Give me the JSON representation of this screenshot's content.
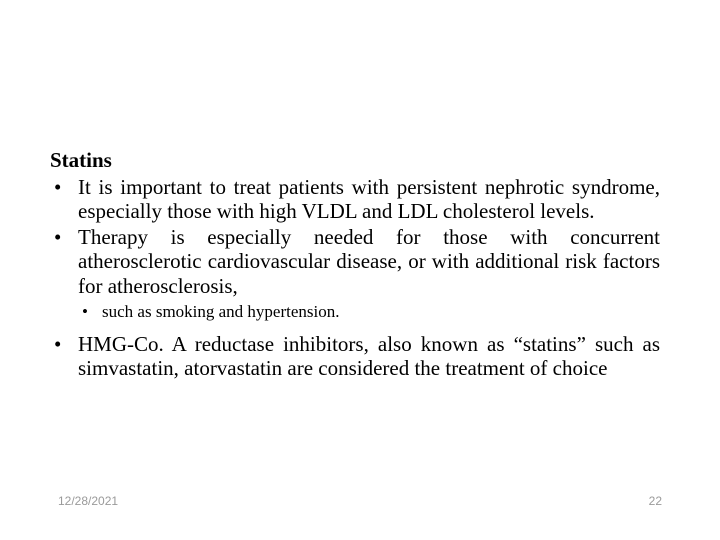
{
  "slide": {
    "heading": "Statins",
    "bullets": [
      {
        "level": 1,
        "text": "It is important to treat patients with persistent nephrotic syndrome, especially those with high VLDL and LDL cholesterol levels."
      },
      {
        "level": 1,
        "text": " Therapy is especially needed for those with concurrent atherosclerotic cardiovascular disease, or with additional risk factors for atherosclerosis,"
      },
      {
        "level": 2,
        "text": "such as smoking and hypertension."
      },
      {
        "level": 1,
        "text": "HMG-Co. A reductase inhibitors, also known as “statins” such as simvastatin, atorvastatin are considered the treatment of choice"
      }
    ]
  },
  "footer": {
    "date": "12/28/2021",
    "page": "22"
  },
  "styles": {
    "background_color": "#ffffff",
    "text_color": "#000000",
    "footer_color": "#9a9a9a",
    "heading_fontsize": 21,
    "bullet_l1_fontsize": 21,
    "bullet_l2_fontsize": 17,
    "footer_fontsize": 12,
    "font_family": "Times New Roman"
  }
}
